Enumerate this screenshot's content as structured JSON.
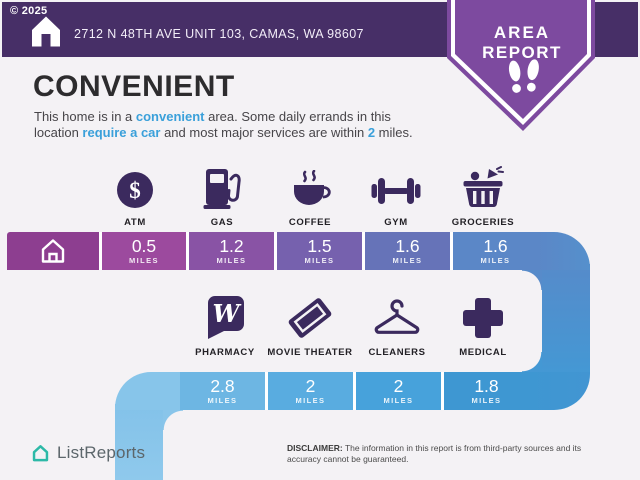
{
  "header": {
    "copyright": "© 2025",
    "address": "2712 N 48TH AVE UNIT 103, CAMAS, WA 98607",
    "background": "#472f67"
  },
  "badge": {
    "line1": "AREA",
    "line2": "REPORT",
    "color": "#7d4a9f"
  },
  "headline": {
    "title": "CONVENIENT",
    "highlight_color": "#3aa0da",
    "description_parts": [
      {
        "text": "This home is in a ",
        "highlight": false
      },
      {
        "text": "convenient",
        "highlight": true
      },
      {
        "text": " area. Some daily errands in this location ",
        "highlight": false
      },
      {
        "text": "require a car",
        "highlight": true
      },
      {
        "text": " and most major services are within ",
        "highlight": false
      },
      {
        "text": "2",
        "highlight": true
      },
      {
        "text": " miles.",
        "highlight": false
      }
    ]
  },
  "amenities_row1": [
    {
      "label": "ATM",
      "miles": "0.5",
      "unit": "MILES",
      "segment_color": "#9c4a9e"
    },
    {
      "label": "GAS",
      "miles": "1.2",
      "unit": "MILES",
      "segment_color": "#8953a5"
    },
    {
      "label": "COFFEE",
      "miles": "1.5",
      "unit": "MILES",
      "segment_color": "#7661ae"
    },
    {
      "label": "GYM",
      "miles": "1.6",
      "unit": "MILES",
      "segment_color": "#6673b8"
    },
    {
      "label": "GROCERIES",
      "miles": "1.6",
      "unit": "MILES",
      "segment_color": "#5b87c7"
    }
  ],
  "amenities_row2": [
    {
      "label": "PHARMACY",
      "miles": "2.8",
      "unit": "MILES",
      "segment_color": "#6db6e3"
    },
    {
      "label": "MOVIE THEATER",
      "miles": "2",
      "unit": "MILES",
      "segment_color": "#59ace0"
    },
    {
      "label": "CLEANERS",
      "miles": "2",
      "unit": "MILES",
      "segment_color": "#47a2db"
    },
    {
      "label": "MEDICAL",
      "miles": "1.8",
      "unit": "MILES",
      "segment_color": "#3e97d2"
    }
  ],
  "snake": {
    "home_segment_color": "#8d3e90",
    "bar1_tail": "linear-gradient(90deg,#5b87c7,#5590cc)",
    "right_connector": "linear-gradient(180deg,#568bca,#4498d4)",
    "bar2_lead": "#87c5ea",
    "bar2_tail": "linear-gradient(90deg,#3e97d2,#4295d2)",
    "left_connector": "linear-gradient(180deg,#83c2e9,#8fc9ec)",
    "fillet_top": "radial-gradient(circle 20px at 0% 100%, rgba(0,0,0,0) 19px, #578bca 19.5px)",
    "fillet_mid": "radial-gradient(circle 20px at 0% 0%, rgba(0,0,0,0) 19px, #4498d4 19.5px)",
    "fillet_left": "radial-gradient(circle 20px at 100% 100%, rgba(0,0,0,0) 19px, #89c5ea 19.5px)"
  },
  "footer": {
    "logo_text": "ListReports",
    "disclaimer_label": "DISCLAIMER:",
    "disclaimer_line1": "The information in this report is from third-party sources and its",
    "disclaimer_line2": "accuracy cannot be guaranteed."
  }
}
